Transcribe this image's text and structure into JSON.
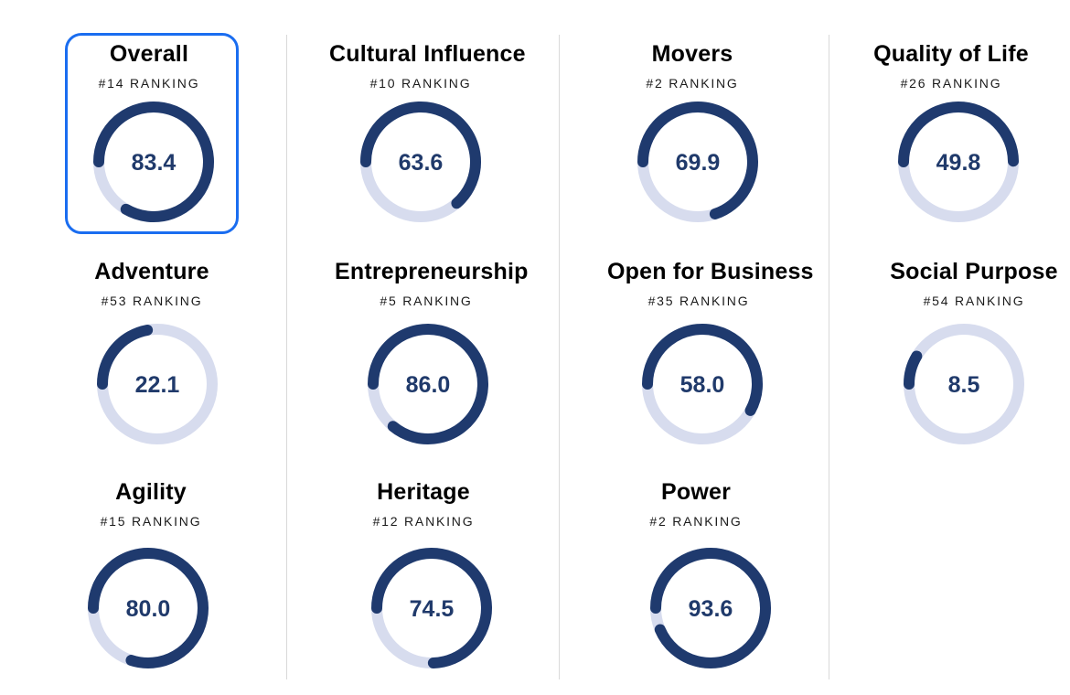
{
  "colors": {
    "ring_fill": "#1f3a6e",
    "ring_track": "#d7dcee",
    "score_text": "#203a6b",
    "selected_border": "#1a6df0",
    "divider": "#d9d9d9"
  },
  "cards": [
    {
      "id": "overall",
      "title": "Overall",
      "rank": "#14 RANKING",
      "score": "83.4",
      "value": 83.4,
      "selected": true
    },
    {
      "id": "cultural-influence",
      "title": "Cultural Influence",
      "rank": "#10 RANKING",
      "score": "63.6",
      "value": 63.6
    },
    {
      "id": "movers",
      "title": "Movers",
      "rank": "#2 RANKING",
      "score": "69.9",
      "value": 69.9
    },
    {
      "id": "quality-of-life",
      "title": "Quality of Life",
      "rank": "#26 RANKING",
      "score": "49.8",
      "value": 49.8
    },
    {
      "id": "adventure",
      "title": "Adventure",
      "rank": "#53 RANKING",
      "score": "22.1",
      "value": 22.1
    },
    {
      "id": "entrepreneurship",
      "title": "Entrepreneurship",
      "rank": "#5 RANKING",
      "score": "86.0",
      "value": 86.0
    },
    {
      "id": "open-for-business",
      "title": "Open for Business",
      "rank": "#35 RANKING",
      "score": "58.0",
      "value": 58.0
    },
    {
      "id": "social-purpose",
      "title": "Social Purpose",
      "rank": "#54 RANKING",
      "score": "8.5",
      "value": 8.5
    },
    {
      "id": "agility",
      "title": "Agility",
      "rank": "#15 RANKING",
      "score": "80.0",
      "value": 80.0
    },
    {
      "id": "heritage",
      "title": "Heritage",
      "rank": "#12 RANKING",
      "score": "74.5",
      "value": 74.5
    },
    {
      "id": "power",
      "title": "Power",
      "rank": "#2 RANKING",
      "score": "93.6",
      "value": 93.6
    }
  ]
}
